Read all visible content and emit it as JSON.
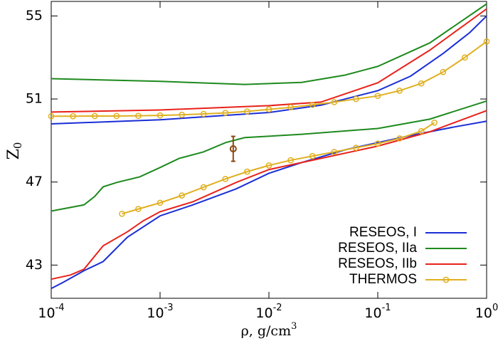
{
  "chart_data": {
    "type": "line",
    "xlabel": "ρ, g/cm",
    "xlabel_sup": "3",
    "ylabel": "Z",
    "ylabel_sub": "0",
    "xscale": "log",
    "xlim": [
      0.0001,
      1
    ],
    "xticks": [
      {
        "value": 0.0001,
        "label": "10",
        "exp": "-4"
      },
      {
        "value": 0.001,
        "label": "10",
        "exp": "-3"
      },
      {
        "value": 0.01,
        "label": "10",
        "exp": "-2"
      },
      {
        "value": 0.1,
        "label": "10",
        "exp": "-1"
      },
      {
        "value": 1,
        "label": "10",
        "exp": "0"
      }
    ],
    "ylim": [
      41.4,
      55.7
    ],
    "yticks": [
      43,
      47,
      51,
      55
    ],
    "legend": "bottom-right",
    "series": [
      {
        "name": "RESEOS, I",
        "color": "#1a2ed6",
        "x": [
          0.0001,
          0.001,
          0.01,
          0.03,
          0.1,
          0.2,
          0.4,
          0.7,
          1,
          null,
          0.0001,
          0.00013,
          0.0002,
          0.0003,
          0.0005,
          0.001,
          0.002,
          0.005,
          0.01,
          0.02,
          0.05,
          0.1,
          0.2,
          0.5,
          1
        ],
        "values": [
          49.8,
          50.0,
          50.35,
          50.7,
          51.4,
          52.1,
          53.2,
          54.2,
          55.0,
          null,
          41.87,
          42.18,
          42.73,
          43.17,
          44.34,
          45.37,
          45.9,
          46.67,
          47.42,
          47.94,
          48.55,
          48.9,
          49.24,
          49.65,
          49.93
        ]
      },
      {
        "name": "RESEOS, IIa",
        "color": "#1e8a1e",
        "x": [
          0.0001,
          0.001,
          0.006,
          0.02,
          0.05,
          0.1,
          0.3,
          1,
          null,
          0.0001,
          0.0002,
          0.00025,
          0.0003,
          0.0004,
          0.00065,
          0.001,
          0.0015,
          0.0025,
          0.004,
          0.006,
          0.02,
          0.1,
          0.3,
          1
        ],
        "values": [
          51.98,
          51.85,
          51.7,
          51.8,
          52.15,
          52.57,
          53.7,
          55.58,
          null,
          45.6,
          45.9,
          46.3,
          46.77,
          46.98,
          47.25,
          47.7,
          48.14,
          48.45,
          48.9,
          49.14,
          49.3,
          49.58,
          50.03,
          50.9
        ]
      },
      {
        "name": "RESEOS, IIb",
        "color": "#e8221a",
        "x": [
          0.0001,
          0.001,
          0.01,
          0.03,
          0.1,
          0.3,
          1,
          null,
          0.0001,
          0.00015,
          0.0002,
          0.0003,
          0.0005,
          0.0007,
          0.001,
          0.002,
          0.005,
          0.01,
          0.03,
          0.1,
          0.3,
          1
        ],
        "values": [
          50.37,
          50.47,
          50.68,
          50.85,
          51.78,
          53.35,
          55.34,
          null,
          42.32,
          42.52,
          42.8,
          43.93,
          44.6,
          45.13,
          45.57,
          46.05,
          46.98,
          47.6,
          48.14,
          48.73,
          49.42,
          50.44
        ]
      },
      {
        "name": "THERMOS",
        "color": "#e0b020",
        "marker": "circle",
        "x": [
          0.0001,
          0.0001585,
          0.0002512,
          0.0003981,
          0.000631,
          0.001,
          0.001585,
          0.002512,
          0.003981,
          0.00631,
          0.01,
          0.01585,
          0.02512,
          0.03981,
          0.0631,
          0.1,
          0.1585,
          0.2512,
          0.3981,
          0.631,
          1,
          null,
          0.000447,
          0.000631,
          0.001,
          0.001585,
          0.002512,
          0.003981,
          0.00631,
          0.01,
          0.01585,
          0.02512,
          0.03981,
          0.0631,
          0.1,
          0.1585,
          0.2512,
          0.3311
        ],
        "values": [
          50.17,
          50.17,
          50.18,
          50.18,
          50.19,
          50.21,
          50.24,
          50.28,
          50.33,
          50.4,
          50.5,
          50.6,
          50.72,
          50.85,
          51.0,
          51.15,
          51.4,
          51.75,
          52.3,
          53.0,
          53.77,
          null,
          45.47,
          45.7,
          46.0,
          46.35,
          46.75,
          47.15,
          47.5,
          47.8,
          48.05,
          48.25,
          48.45,
          48.65,
          48.85,
          49.1,
          49.45,
          49.86
        ]
      }
    ],
    "errorbar": {
      "x": 0.0047,
      "value": 48.6,
      "error": 0.6,
      "color": "#8b4a14"
    }
  }
}
